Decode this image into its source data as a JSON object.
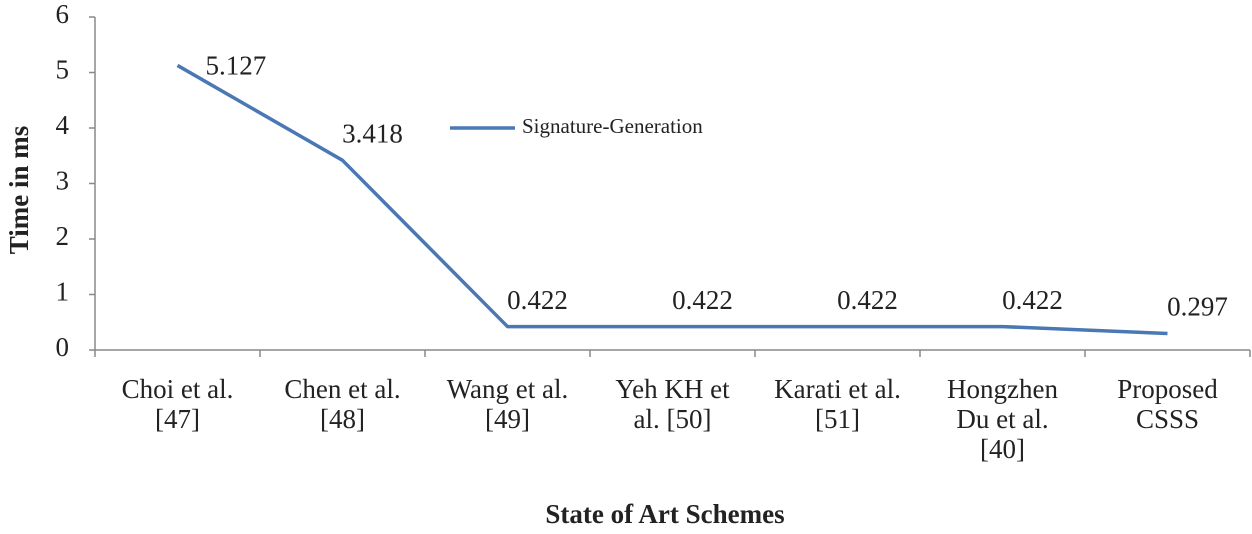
{
  "chart_data": {
    "type": "line",
    "x_label": "State of Art Schemes",
    "y_label": "Time in ms",
    "categories": [
      "Choi et al.\n[47]",
      "Chen et al.\n[48]",
      "Wang et al.\n[49]",
      "Yeh KH et\nal. [50]",
      "Karati et al.\n[51]",
      "Hongzhen\nDu et al.\n[40]",
      "Proposed\nCSSS"
    ],
    "series": [
      {
        "name": "Signature-Generation",
        "color": "#4a78b5",
        "values": [
          5.127,
          3.418,
          0.422,
          0.422,
          0.422,
          0.422,
          0.297
        ]
      }
    ],
    "ylim": [
      0,
      6
    ],
    "yticks": [
      0,
      1,
      2,
      3,
      4,
      5,
      6
    ],
    "data_labels": true
  }
}
